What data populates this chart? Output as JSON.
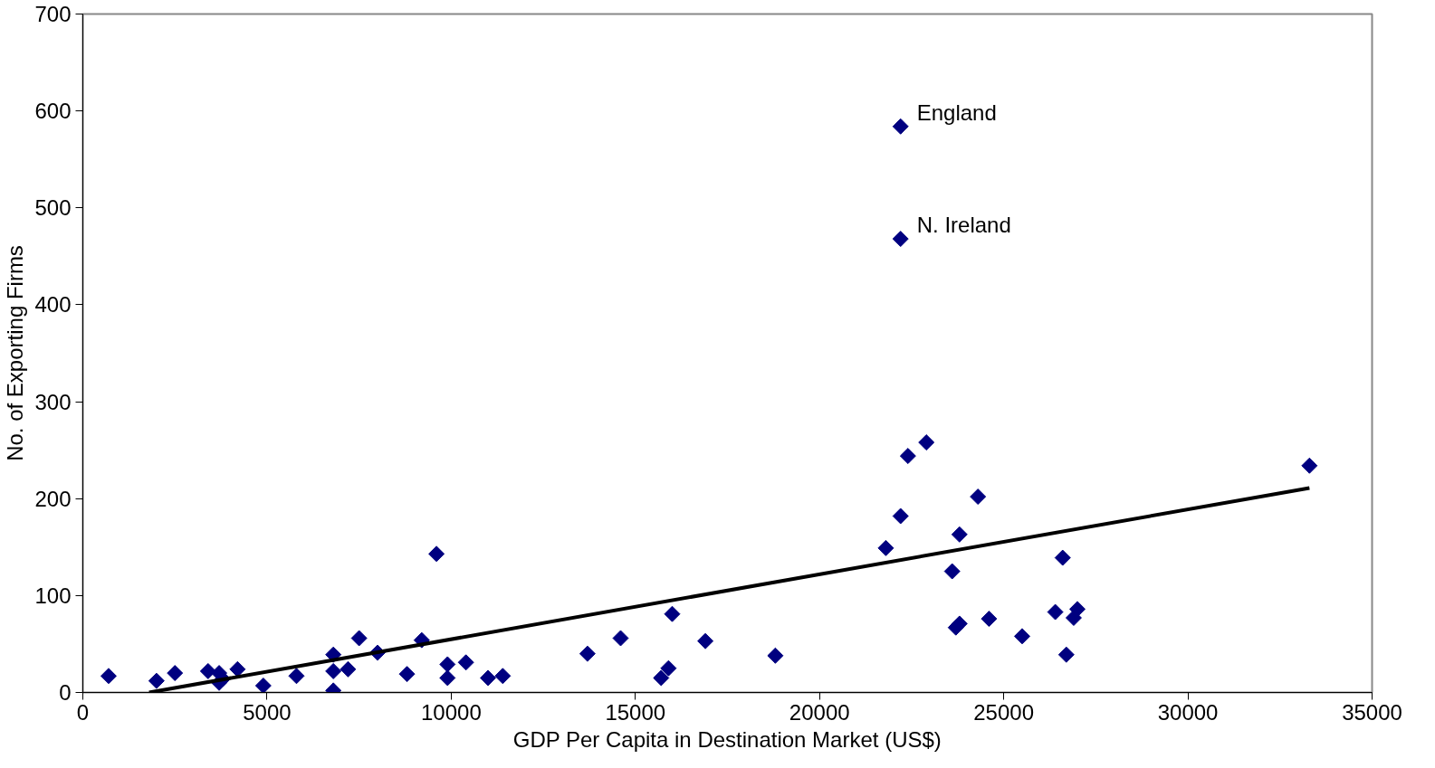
{
  "chart_data": {
    "type": "scatter",
    "xlabel": "GDP Per Capita in Destination Market (US$)",
    "ylabel": "No. of Exporting Firms",
    "xlim": [
      0,
      35000
    ],
    "xticks": [
      0,
      5000,
      10000,
      15000,
      20000,
      25000,
      30000,
      35000
    ],
    "ylim": [
      0,
      700
    ],
    "yticks": [
      0,
      100,
      200,
      300,
      400,
      500,
      600,
      700
    ],
    "grid": false,
    "marker": "diamond",
    "series": [
      {
        "color": "#000080",
        "x": [
          700,
          2000,
          2500,
          3400,
          3700,
          3700,
          3800,
          4200,
          4900,
          5800,
          6800,
          6800,
          6800,
          7200,
          7500,
          8000,
          8800,
          9200,
          9600,
          9900,
          9900,
          10400,
          11000,
          11400,
          13700,
          14600,
          15700,
          15900,
          16000,
          16900,
          18800,
          22200,
          22200,
          21800,
          22200,
          22400,
          22900,
          23600,
          23800,
          23700,
          23800,
          24300,
          24600,
          25500,
          26400,
          26600,
          26700,
          26900,
          27000,
          33300
        ],
        "values": [
          17,
          12,
          20,
          22,
          20,
          10,
          14,
          24,
          7,
          17,
          2,
          39,
          22,
          24,
          56,
          41,
          19,
          54,
          143,
          29,
          15,
          31,
          15,
          17,
          40,
          56,
          15,
          25,
          81,
          53,
          38,
          584,
          468,
          149,
          182,
          244,
          258,
          125,
          163,
          67,
          71,
          202,
          76,
          58,
          83,
          139,
          39,
          77,
          86,
          234
        ]
      },
      {
        "type": "line",
        "color": "#000000",
        "marker": "none",
        "line_style": "solid",
        "x": [
          1800,
          33300
        ],
        "values": [
          0,
          211
        ]
      }
    ],
    "annotations": [
      {
        "text": "England",
        "x": 22200,
        "y": 584
      },
      {
        "text": "N. Ireland",
        "x": 22200,
        "y": 468
      }
    ]
  }
}
